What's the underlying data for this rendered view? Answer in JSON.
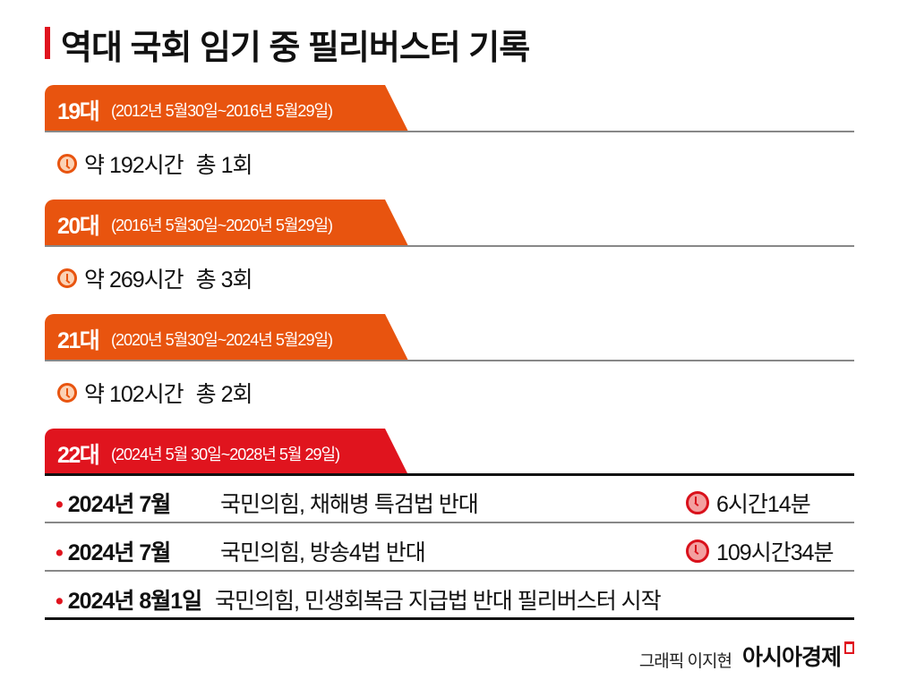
{
  "title": "역대 국회 임기 중 필리버스터 기록",
  "colors": {
    "accent": "#e0141e",
    "orange": "#e8540f"
  },
  "sessions": [
    {
      "num": "19대",
      "range": "(2012년 5월30일~2016년 5월29일)",
      "hours": "약 192시간",
      "count": "총 1회",
      "icon": "clock-icon"
    },
    {
      "num": "20대",
      "range": "(2016년 5월30일~2020년 5월29일)",
      "hours": "약 269시간",
      "count": "총 3회",
      "icon": "clock-icon"
    },
    {
      "num": "21대",
      "range": "(2020년 5월30일~2024년 5월29일)",
      "hours": "약 102시간",
      "count": "총 2회",
      "icon": "clock-icon"
    },
    {
      "num": "22대",
      "range": "(2024년 5월 30일~2028년 5월 29일)"
    }
  ],
  "rows": [
    {
      "date": "2024년 7월",
      "desc": "국민의힘, 채해병 특검법 반대",
      "duration": "6시간14분"
    },
    {
      "date": "2024년 7월",
      "desc": "국민의힘, 방송4법 반대",
      "duration": "109시간34분"
    },
    {
      "date": "2024년 8월1일",
      "desc": "국민의힘, 민생회복금 지급법 반대 필리버스터 시작",
      "duration": ""
    }
  ],
  "footer": {
    "credit": "그래픽 이지현",
    "brand": "아시아경제"
  }
}
